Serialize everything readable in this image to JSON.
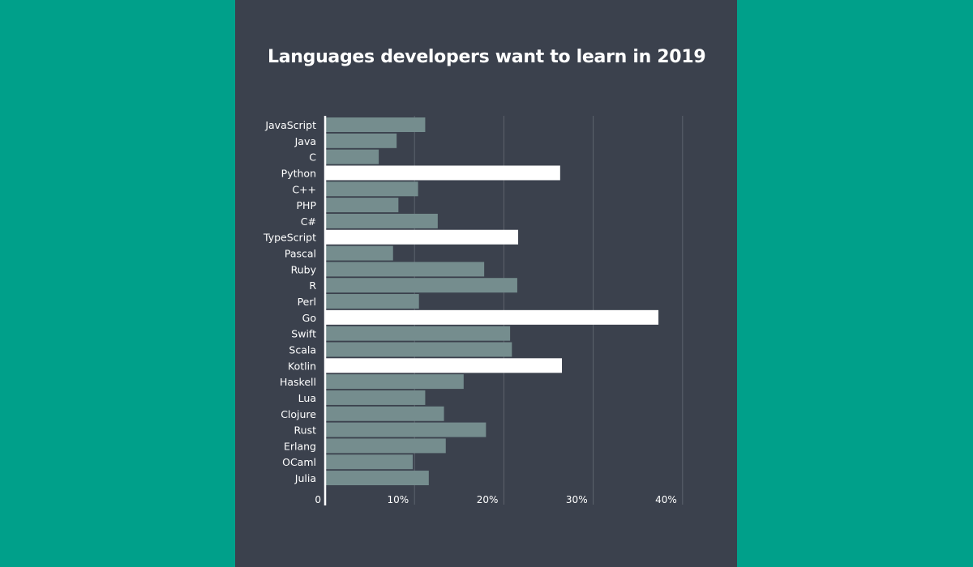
{
  "chart_data": {
    "type": "bar",
    "orientation": "horizontal",
    "title": "Languages developers want to learn in 2019",
    "categories": [
      "JavaScript",
      "Java",
      "C",
      "Python",
      "C++",
      "PHP",
      "C#",
      "TypeScript",
      "Pascal",
      "Ruby",
      "R",
      "Perl",
      "Go",
      "Swift",
      "Scala",
      "Kotlin",
      "Haskell",
      "Lua",
      "Clojure",
      "Rust",
      "Erlang",
      "OCaml",
      "Julia"
    ],
    "values": [
      11.2,
      8.0,
      6.0,
      26.3,
      10.4,
      8.2,
      12.6,
      21.6,
      7.6,
      17.8,
      21.5,
      10.5,
      37.3,
      20.7,
      20.9,
      26.5,
      15.5,
      11.2,
      13.3,
      18.0,
      13.5,
      9.8,
      11.6
    ],
    "highlighted": [
      "Python",
      "TypeScript",
      "Go",
      "Kotlin"
    ],
    "xlim": [
      0,
      40
    ],
    "xticks": [
      0,
      10,
      20,
      30,
      40
    ],
    "xtick_labels": [
      "0",
      "10%",
      "20%",
      "30%",
      "40%"
    ],
    "grid": true,
    "colors": {
      "background": "#3b414d",
      "page": "#00a08a",
      "bar": "#758d8e",
      "highlight": "#ffffff",
      "text": "#ffffff",
      "grid": "#5d636d"
    }
  }
}
